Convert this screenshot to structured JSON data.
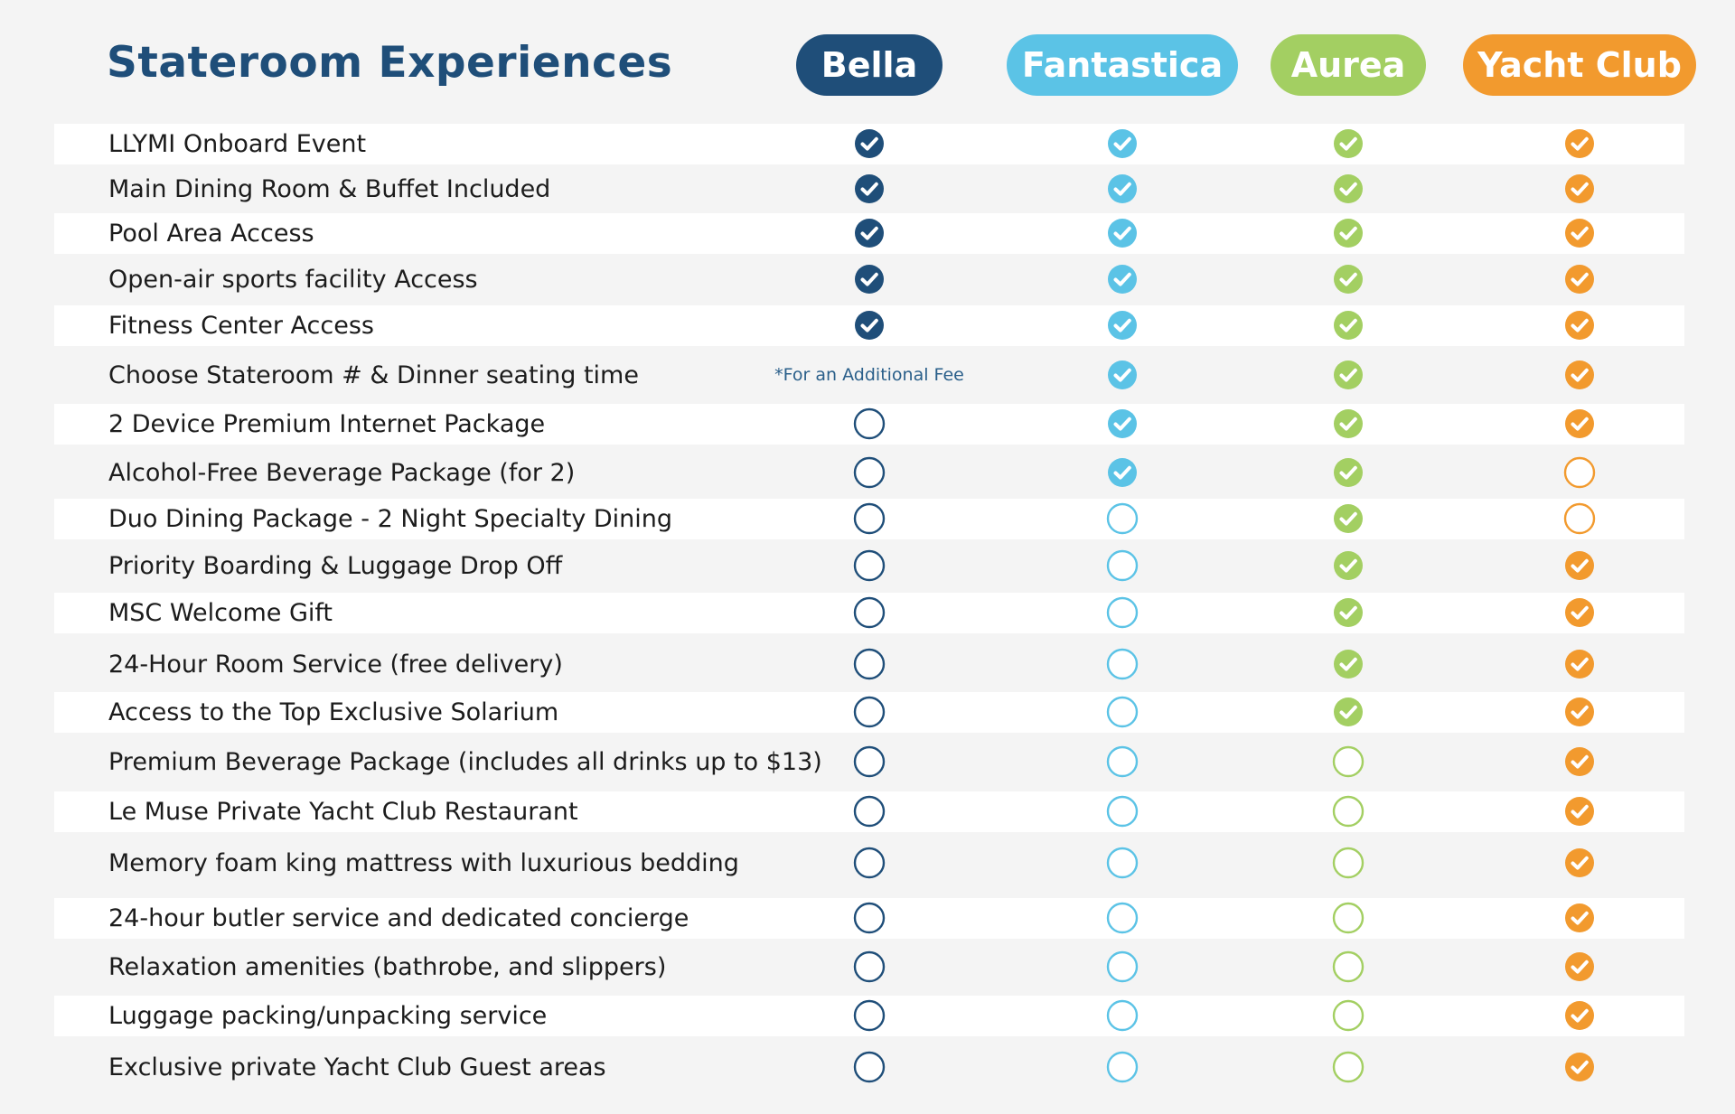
{
  "title": "Stateroom Experiences",
  "columns": [
    {
      "label": "Bella",
      "color": "#1f4e79"
    },
    {
      "label": "Fantastica",
      "color": "#5bc3e6"
    },
    {
      "label": "Aurea",
      "color": "#a3cf62"
    },
    {
      "label": "Yacht Club",
      "color": "#f29a2e"
    }
  ],
  "fee_note": "*For an Additional Fee",
  "rows": [
    {
      "label": "LLYMI Onboard Event",
      "values": [
        "check",
        "check",
        "check",
        "check"
      ]
    },
    {
      "label": "Main Dining Room & Buffet Included",
      "values": [
        "check",
        "check",
        "check",
        "check"
      ]
    },
    {
      "label": "Pool Area Access",
      "values": [
        "check",
        "check",
        "check",
        "check"
      ]
    },
    {
      "label": "Open-air sports facility Access",
      "values": [
        "check",
        "check",
        "check",
        "check"
      ]
    },
    {
      "label": "Fitness Center Access",
      "values": [
        "check",
        "check",
        "check",
        "check"
      ]
    },
    {
      "label": "Choose Stateroom # & Dinner seating time",
      "values": [
        "fee",
        "check",
        "check",
        "check"
      ]
    },
    {
      "label": "2 Device Premium Internet Package",
      "values": [
        "empty",
        "check",
        "check",
        "check"
      ]
    },
    {
      "label": "Alcohol-Free Beverage Package (for 2)",
      "values": [
        "empty",
        "check",
        "check",
        "empty"
      ]
    },
    {
      "label": "Duo Dining Package - 2 Night Specialty Dining",
      "values": [
        "empty",
        "empty",
        "check",
        "empty"
      ]
    },
    {
      "label": "Priority Boarding & Luggage Drop Off",
      "values": [
        "empty",
        "empty",
        "check",
        "check"
      ]
    },
    {
      "label": "MSC Welcome Gift",
      "values": [
        "empty",
        "empty",
        "check",
        "check"
      ]
    },
    {
      "label": "24-Hour Room Service (free delivery)",
      "values": [
        "empty",
        "empty",
        "check",
        "check"
      ]
    },
    {
      "label": "Access to the Top Exclusive Solarium",
      "values": [
        "empty",
        "empty",
        "check",
        "check"
      ]
    },
    {
      "label": "Premium Beverage Package (includes all drinks up to $13)",
      "values": [
        "empty",
        "empty",
        "empty",
        "check"
      ]
    },
    {
      "label": "Le Muse Private Yacht Club Restaurant",
      "values": [
        "empty",
        "empty",
        "empty",
        "check"
      ]
    },
    {
      "label": "Memory foam king mattress with luxurious bedding",
      "values": [
        "empty",
        "empty",
        "empty",
        "check"
      ]
    },
    {
      "label": "24-hour butler service and dedicated concierge",
      "values": [
        "empty",
        "empty",
        "empty",
        "check"
      ]
    },
    {
      "label": "Relaxation amenities (bathrobe, and slippers)",
      "values": [
        "empty",
        "empty",
        "empty",
        "check"
      ]
    },
    {
      "label": "Luggage packing/unpacking service",
      "values": [
        "empty",
        "empty",
        "empty",
        "check"
      ]
    },
    {
      "label": "Exclusive private Yacht Club Guest areas",
      "values": [
        "empty",
        "empty",
        "empty",
        "check"
      ]
    }
  ]
}
